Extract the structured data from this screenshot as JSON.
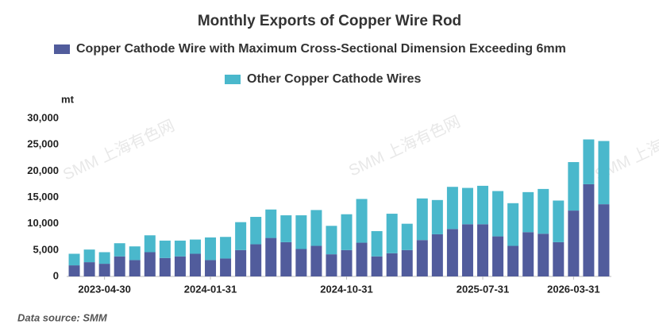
{
  "chart_data": {
    "type": "stacked_bar",
    "title": "Monthly Exports of Copper Wire Rod",
    "y_unit": "mt",
    "source": "Data source:  SMM",
    "watermark": "SMM 上海有色网",
    "categories": [
      null,
      null,
      "2023-04-30",
      null,
      null,
      null,
      null,
      null,
      null,
      "2024-01-31",
      null,
      null,
      null,
      null,
      null,
      null,
      null,
      null,
      "2024-10-31",
      null,
      null,
      null,
      null,
      null,
      null,
      null,
      null,
      "2025-07-31",
      null,
      null,
      null,
      null,
      null,
      "2026-03-31",
      null,
      null
    ],
    "series": [
      {
        "name": "Copper Cathode Wire with Maximum Cross-Sectional Dimension Exceeding 6mm",
        "color": "#515c9c",
        "values": [
          2100,
          2700,
          2400,
          3800,
          3100,
          4600,
          3500,
          3800,
          4300,
          3100,
          3400,
          5000,
          6100,
          7300,
          6500,
          5200,
          5800,
          4200,
          5000,
          6400,
          3800,
          4400,
          5000,
          6900,
          8000,
          9000,
          9900,
          9900,
          7600,
          5800,
          8400,
          8100,
          6500,
          12500,
          17500,
          13700
        ]
      },
      {
        "name": "Other Copper Cathode Wires",
        "color": "#4ab8cc",
        "values": [
          2200,
          2400,
          2200,
          2500,
          2600,
          3200,
          3300,
          3000,
          2700,
          4300,
          4100,
          5300,
          5200,
          5400,
          5100,
          6400,
          6800,
          5400,
          6800,
          8300,
          4800,
          7500,
          5000,
          7900,
          6500,
          8000,
          6900,
          7300,
          8600,
          8100,
          7600,
          8500,
          7900,
          9200,
          8500,
          12000
        ]
      }
    ],
    "ylim": [
      0,
      30000
    ],
    "yticks": [
      0,
      {
        "value": 5000,
        "label": "5,000"
      },
      {
        "value": 10000,
        "label": "10,000"
      },
      {
        "value": 15000,
        "label": "15,000"
      },
      {
        "value": 20000,
        "label": "20,000"
      },
      {
        "value": 25000,
        "label": "25,000"
      },
      {
        "value": 30000,
        "label": "30,000"
      }
    ],
    "grid": false
  }
}
